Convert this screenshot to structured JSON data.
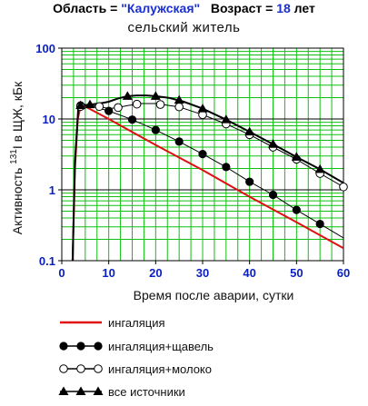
{
  "header": {
    "region_label": "Область = ",
    "region_value": "\"Калужская\"",
    "age_label": "Возраст = ",
    "age_value": "18",
    "age_unit": " лет",
    "subtitle": "сельский  житель"
  },
  "chart_data": {
    "type": "line",
    "ylabel_parts": {
      "before": "Активность ",
      "sup": "131",
      "after": "I в ЩЖ, кБк"
    },
    "xlabel": "Время после аварии, сутки",
    "xlim": [
      0,
      60
    ],
    "ylim": [
      0.1,
      100
    ],
    "yscale": "log",
    "grid": true,
    "legend_position": "bottom",
    "x_ticks": [
      "0",
      "10",
      "20",
      "30",
      "40",
      "50",
      "60"
    ],
    "y_ticks": [
      "0.1",
      "1",
      "10",
      "100"
    ],
    "colors": {
      "grid": "#10c010",
      "ticks": "#0a1fbf",
      "inhalation": "#e01010",
      "series": "#000000"
    },
    "series": [
      {
        "name": "ингаляция",
        "marker": "none",
        "x": [
          2.3,
          2.8,
          3.4,
          4.0,
          5.0,
          10,
          20,
          30,
          40,
          50,
          60
        ],
        "y": [
          0.1,
          2.0,
          10.0,
          15.0,
          15.0,
          10.0,
          4.3,
          1.9,
          0.8,
          0.35,
          0.15
        ]
      },
      {
        "name": "ингаляция+щавель",
        "marker": "filled-circle",
        "x": [
          2.3,
          2.8,
          3.5,
          4,
          5,
          10,
          15,
          20,
          25,
          30,
          35,
          40,
          45,
          50,
          55,
          60
        ],
        "y": [
          0.1,
          2.5,
          13.0,
          15.5,
          16.0,
          13.0,
          9.8,
          7.0,
          4.8,
          3.2,
          2.1,
          1.3,
          0.85,
          0.52,
          0.33,
          0.21
        ],
        "markers_x": [
          4,
          10,
          15,
          20,
          25,
          30,
          35,
          40,
          45,
          50,
          55
        ],
        "markers_y": [
          15.5,
          13.0,
          9.8,
          7.0,
          4.8,
          3.2,
          2.1,
          1.3,
          0.85,
          0.52,
          0.33
        ]
      },
      {
        "name": "ингаляция+молоко",
        "marker": "open-circle",
        "x": [
          2.3,
          2.8,
          3.5,
          4,
          6,
          8,
          10,
          12,
          14,
          17,
          20,
          25,
          30,
          35,
          40,
          45,
          50,
          55,
          60
        ],
        "y": [
          0.1,
          2.5,
          14.0,
          15.0,
          15.8,
          15.0,
          14.0,
          14.5,
          15.5,
          16.5,
          16.5,
          14.8,
          11.5,
          8.5,
          6.0,
          4.0,
          2.7,
          1.7,
          1.1
        ],
        "markers_x": [
          4,
          8,
          12,
          16,
          21,
          25,
          30,
          35,
          40,
          45,
          50,
          55,
          60
        ],
        "markers_y": [
          15.0,
          15.0,
          14.5,
          16.2,
          16.0,
          14.8,
          11.5,
          8.5,
          6.0,
          4.0,
          2.7,
          1.7,
          1.1
        ]
      },
      {
        "name": "все источники",
        "marker": "filled-triangle",
        "x": [
          2.3,
          2.8,
          3.5,
          4,
          6,
          8,
          10,
          12,
          14,
          16,
          18,
          20,
          23,
          26,
          30,
          35,
          40,
          45,
          50,
          55,
          60
        ],
        "y": [
          0.1,
          2.5,
          14.0,
          15.5,
          16.0,
          16.5,
          17.5,
          19.5,
          21.0,
          21.5,
          21.5,
          21.0,
          19.8,
          17.5,
          14.0,
          9.8,
          6.6,
          4.4,
          2.9,
          1.95,
          1.25
        ],
        "markers_x": [
          4,
          6,
          14,
          20,
          25,
          30,
          35,
          40,
          45,
          50,
          55
        ],
        "markers_y": [
          15.5,
          16.0,
          21.0,
          21.0,
          18.5,
          14.0,
          9.8,
          6.6,
          4.4,
          2.9,
          1.95
        ]
      }
    ]
  }
}
